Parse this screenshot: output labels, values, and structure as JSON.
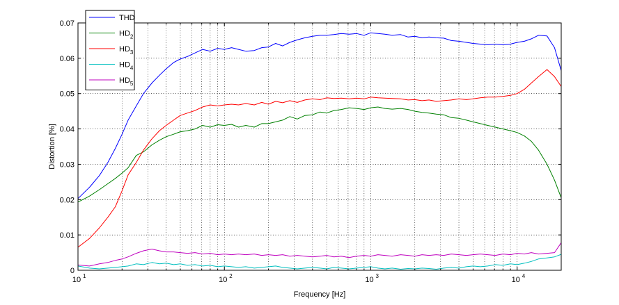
{
  "chart_data": {
    "type": "line",
    "title": "",
    "xlabel": "Frequency [Hz]",
    "ylabel": "Distortion [%]",
    "xscale": "log",
    "xlim": [
      10,
      20000
    ],
    "ylim": [
      0,
      0.07
    ],
    "grid": "major+minor dotted",
    "legend_position": "top-left",
    "x_ticks": [
      {
        "value": 10,
        "base": "10",
        "exp": "1"
      },
      {
        "value": 100,
        "base": "10",
        "exp": "2"
      },
      {
        "value": 1000,
        "base": "10",
        "exp": "3"
      },
      {
        "value": 10000,
        "base": "10",
        "exp": "4"
      }
    ],
    "y_ticks": [
      "0",
      "0.01",
      "0.02",
      "0.03",
      "0.04",
      "0.05",
      "0.06",
      "0.07"
    ],
    "x": [
      10,
      12,
      14,
      16,
      18,
      20,
      22,
      25,
      28,
      32,
      36,
      40,
      45,
      50,
      56,
      63,
      71,
      80,
      90,
      100,
      112,
      125,
      140,
      160,
      180,
      200,
      224,
      250,
      280,
      315,
      355,
      400,
      450,
      500,
      560,
      630,
      710,
      800,
      900,
      1000,
      1120,
      1250,
      1400,
      1600,
      1800,
      2000,
      2240,
      2500,
      2800,
      3150,
      3550,
      4000,
      4500,
      5000,
      5600,
      6300,
      7100,
      8000,
      9000,
      10000,
      11200,
      12500,
      14000,
      16000,
      18000,
      20000
    ],
    "series": [
      {
        "name": "THD",
        "sub": "",
        "color": "#0000ff",
        "values": [
          0.0203,
          0.0235,
          0.0268,
          0.0305,
          0.0345,
          0.0385,
          0.0425,
          0.0465,
          0.05,
          0.053,
          0.0552,
          0.057,
          0.0588,
          0.0598,
          0.0605,
          0.0615,
          0.0625,
          0.062,
          0.0628,
          0.0625,
          0.063,
          0.0625,
          0.062,
          0.0622,
          0.063,
          0.0632,
          0.0642,
          0.0635,
          0.0645,
          0.0652,
          0.0658,
          0.0662,
          0.0665,
          0.0665,
          0.0667,
          0.067,
          0.0668,
          0.067,
          0.0665,
          0.0672,
          0.067,
          0.0668,
          0.0665,
          0.0667,
          0.066,
          0.0662,
          0.0658,
          0.066,
          0.0658,
          0.0657,
          0.065,
          0.0648,
          0.0645,
          0.0642,
          0.064,
          0.0638,
          0.064,
          0.0638,
          0.064,
          0.0645,
          0.0648,
          0.0655,
          0.0665,
          0.0663,
          0.063,
          0.0565
        ]
      },
      {
        "name": "HD",
        "sub": "2",
        "color": "#008000",
        "values": [
          0.0193,
          0.021,
          0.0228,
          0.0245,
          0.026,
          0.0275,
          0.029,
          0.0325,
          0.0335,
          0.0355,
          0.0368,
          0.0378,
          0.0385,
          0.0392,
          0.0395,
          0.04,
          0.041,
          0.0405,
          0.0412,
          0.041,
          0.0413,
          0.0405,
          0.041,
          0.0405,
          0.0415,
          0.0415,
          0.042,
          0.0425,
          0.0435,
          0.0428,
          0.0438,
          0.044,
          0.0448,
          0.0445,
          0.0452,
          0.0455,
          0.046,
          0.0458,
          0.0455,
          0.046,
          0.0462,
          0.0458,
          0.0456,
          0.0458,
          0.0455,
          0.045,
          0.0447,
          0.0445,
          0.0442,
          0.044,
          0.0432,
          0.043,
          0.0425,
          0.042,
          0.0415,
          0.041,
          0.0405,
          0.04,
          0.0395,
          0.039,
          0.038,
          0.0365,
          0.034,
          0.03,
          0.0255,
          0.0205
        ]
      },
      {
        "name": "HD",
        "sub": "3",
        "color": "#ff0000",
        "values": [
          0.0065,
          0.009,
          0.012,
          0.015,
          0.018,
          0.0225,
          0.027,
          0.0305,
          0.034,
          0.0372,
          0.0395,
          0.041,
          0.0425,
          0.0438,
          0.0445,
          0.0452,
          0.0462,
          0.0468,
          0.0465,
          0.0468,
          0.047,
          0.0468,
          0.0472,
          0.0468,
          0.0475,
          0.047,
          0.0478,
          0.0474,
          0.048,
          0.0475,
          0.0482,
          0.0485,
          0.0483,
          0.0488,
          0.0486,
          0.0487,
          0.0485,
          0.0487,
          0.0485,
          0.049,
          0.0488,
          0.0487,
          0.0486,
          0.0485,
          0.0482,
          0.0483,
          0.048,
          0.0482,
          0.0478,
          0.048,
          0.0482,
          0.0485,
          0.0483,
          0.0485,
          0.0488,
          0.049,
          0.049,
          0.0492,
          0.0495,
          0.05,
          0.0512,
          0.053,
          0.0548,
          0.0568,
          0.0548,
          0.052
        ]
      },
      {
        "name": "HD",
        "sub": "4",
        "color": "#00bfbf",
        "values": [
          0.0012,
          0.0006,
          0.0004,
          0.0006,
          0.0008,
          0.001,
          0.0012,
          0.0018,
          0.0016,
          0.0022,
          0.0018,
          0.002,
          0.0016,
          0.0018,
          0.0014,
          0.0016,
          0.0012,
          0.0014,
          0.001,
          0.0012,
          0.001,
          0.0008,
          0.001,
          0.0006,
          0.0008,
          0.001,
          0.0012,
          0.0008,
          0.0006,
          0.0004,
          0.0006,
          0.0008,
          0.0006,
          0.0004,
          0.0008,
          0.0006,
          0.0004,
          0.0006,
          0.0008,
          0.001,
          0.0006,
          0.0004,
          0.0006,
          0.0003,
          0.0005,
          0.0004,
          0.0006,
          0.0005,
          0.0003,
          0.0006,
          0.0008,
          0.0006,
          0.001,
          0.0012,
          0.001,
          0.0012,
          0.0016,
          0.0014,
          0.0018,
          0.0016,
          0.002,
          0.0025,
          0.0032,
          0.0035,
          0.0038,
          0.0045
        ]
      },
      {
        "name": "HD",
        "sub": "5",
        "color": "#bf00bf",
        "values": [
          0.0015,
          0.0012,
          0.0018,
          0.0022,
          0.0028,
          0.0032,
          0.0038,
          0.0048,
          0.0055,
          0.006,
          0.0055,
          0.0052,
          0.0052,
          0.005,
          0.0048,
          0.005,
          0.0046,
          0.0048,
          0.0044,
          0.0046,
          0.0044,
          0.0046,
          0.0044,
          0.0046,
          0.0042,
          0.0044,
          0.0042,
          0.0044,
          0.004,
          0.0042,
          0.004,
          0.0038,
          0.004,
          0.0042,
          0.0038,
          0.004,
          0.0036,
          0.004,
          0.0042,
          0.004,
          0.0044,
          0.0042,
          0.004,
          0.0044,
          0.0042,
          0.004,
          0.0044,
          0.0042,
          0.0044,
          0.0042,
          0.0046,
          0.0044,
          0.0042,
          0.0044,
          0.0046,
          0.0044,
          0.0042,
          0.0046,
          0.0044,
          0.0048,
          0.0046,
          0.005,
          0.0046,
          0.0048,
          0.005,
          0.0078
        ]
      }
    ]
  }
}
